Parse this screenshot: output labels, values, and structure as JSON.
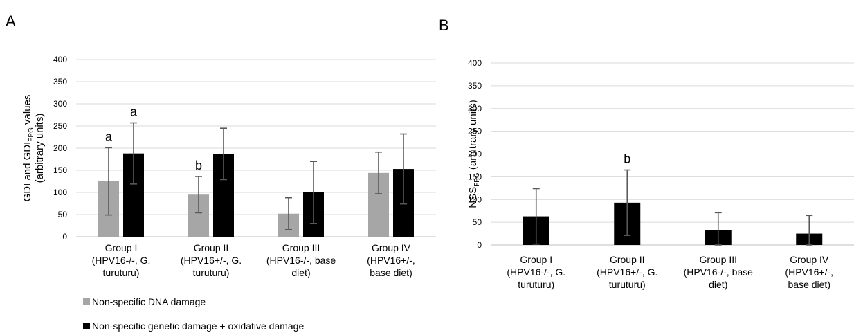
{
  "chart_data": [
    {
      "panel": "A",
      "type": "bar",
      "ylabel": "GDI and GDIFPG values (arbitrary units)",
      "ylabel_parts": {
        "pre": "GDI and GDI",
        "sub": "FPG",
        "post": " values",
        "line2": "(arbitrary units)"
      },
      "ylim": [
        0,
        400
      ],
      "yticks": [
        0,
        50,
        100,
        150,
        200,
        250,
        300,
        350,
        400
      ],
      "grid": true,
      "categories": [
        [
          "Group I",
          "(HPV16-/-, G.",
          "turuturu)"
        ],
        [
          "Group II",
          "(HPV16+/-, G.",
          "turuturu)"
        ],
        [
          "Group III",
          "(HPV16-/-, base",
          "diet)"
        ],
        [
          "Group IV",
          "(HPV16+/-,",
          "base diet)"
        ]
      ],
      "series": [
        {
          "name": "Non-specific DNA damage",
          "color": "#a6a6a6",
          "values": [
            125,
            95,
            52,
            144
          ],
          "errors": [
            76,
            41,
            36,
            47
          ],
          "annotations": [
            "a",
            "b",
            "",
            ""
          ]
        },
        {
          "name": "Non-specific genetic damage + oxidative damage",
          "color": "#000000",
          "values": [
            188,
            187,
            100,
            153
          ],
          "errors": [
            69,
            58,
            70,
            79
          ],
          "annotations": [
            "a",
            "",
            "",
            ""
          ]
        }
      ],
      "legend_position": "bottom"
    },
    {
      "panel": "B",
      "type": "bar",
      "ylabel": "NSSFPG (arbitrary units)",
      "ylabel_parts": {
        "pre": "NSS",
        "sub": "FPG",
        "post": " (arbitrary units)"
      },
      "ylim": [
        0,
        400
      ],
      "yticks": [
        0,
        50,
        100,
        150,
        200,
        250,
        300,
        350,
        400
      ],
      "grid": true,
      "categories": [
        [
          "Group I",
          "(HPV16-/-, G.",
          "turuturu)"
        ],
        [
          "Group II",
          "(HPV16+/-, G.",
          "turuturu)"
        ],
        [
          "Group III",
          "(HPV16-/-, base",
          "diet)"
        ],
        [
          "Group IV",
          "(HPV16+/-,",
          "base diet)"
        ]
      ],
      "series": [
        {
          "color": "#000000",
          "values": [
            63,
            93,
            32,
            25
          ],
          "errors": [
            61,
            72,
            39,
            40
          ],
          "annotations": [
            "",
            "b",
            "",
            ""
          ]
        }
      ]
    }
  ]
}
